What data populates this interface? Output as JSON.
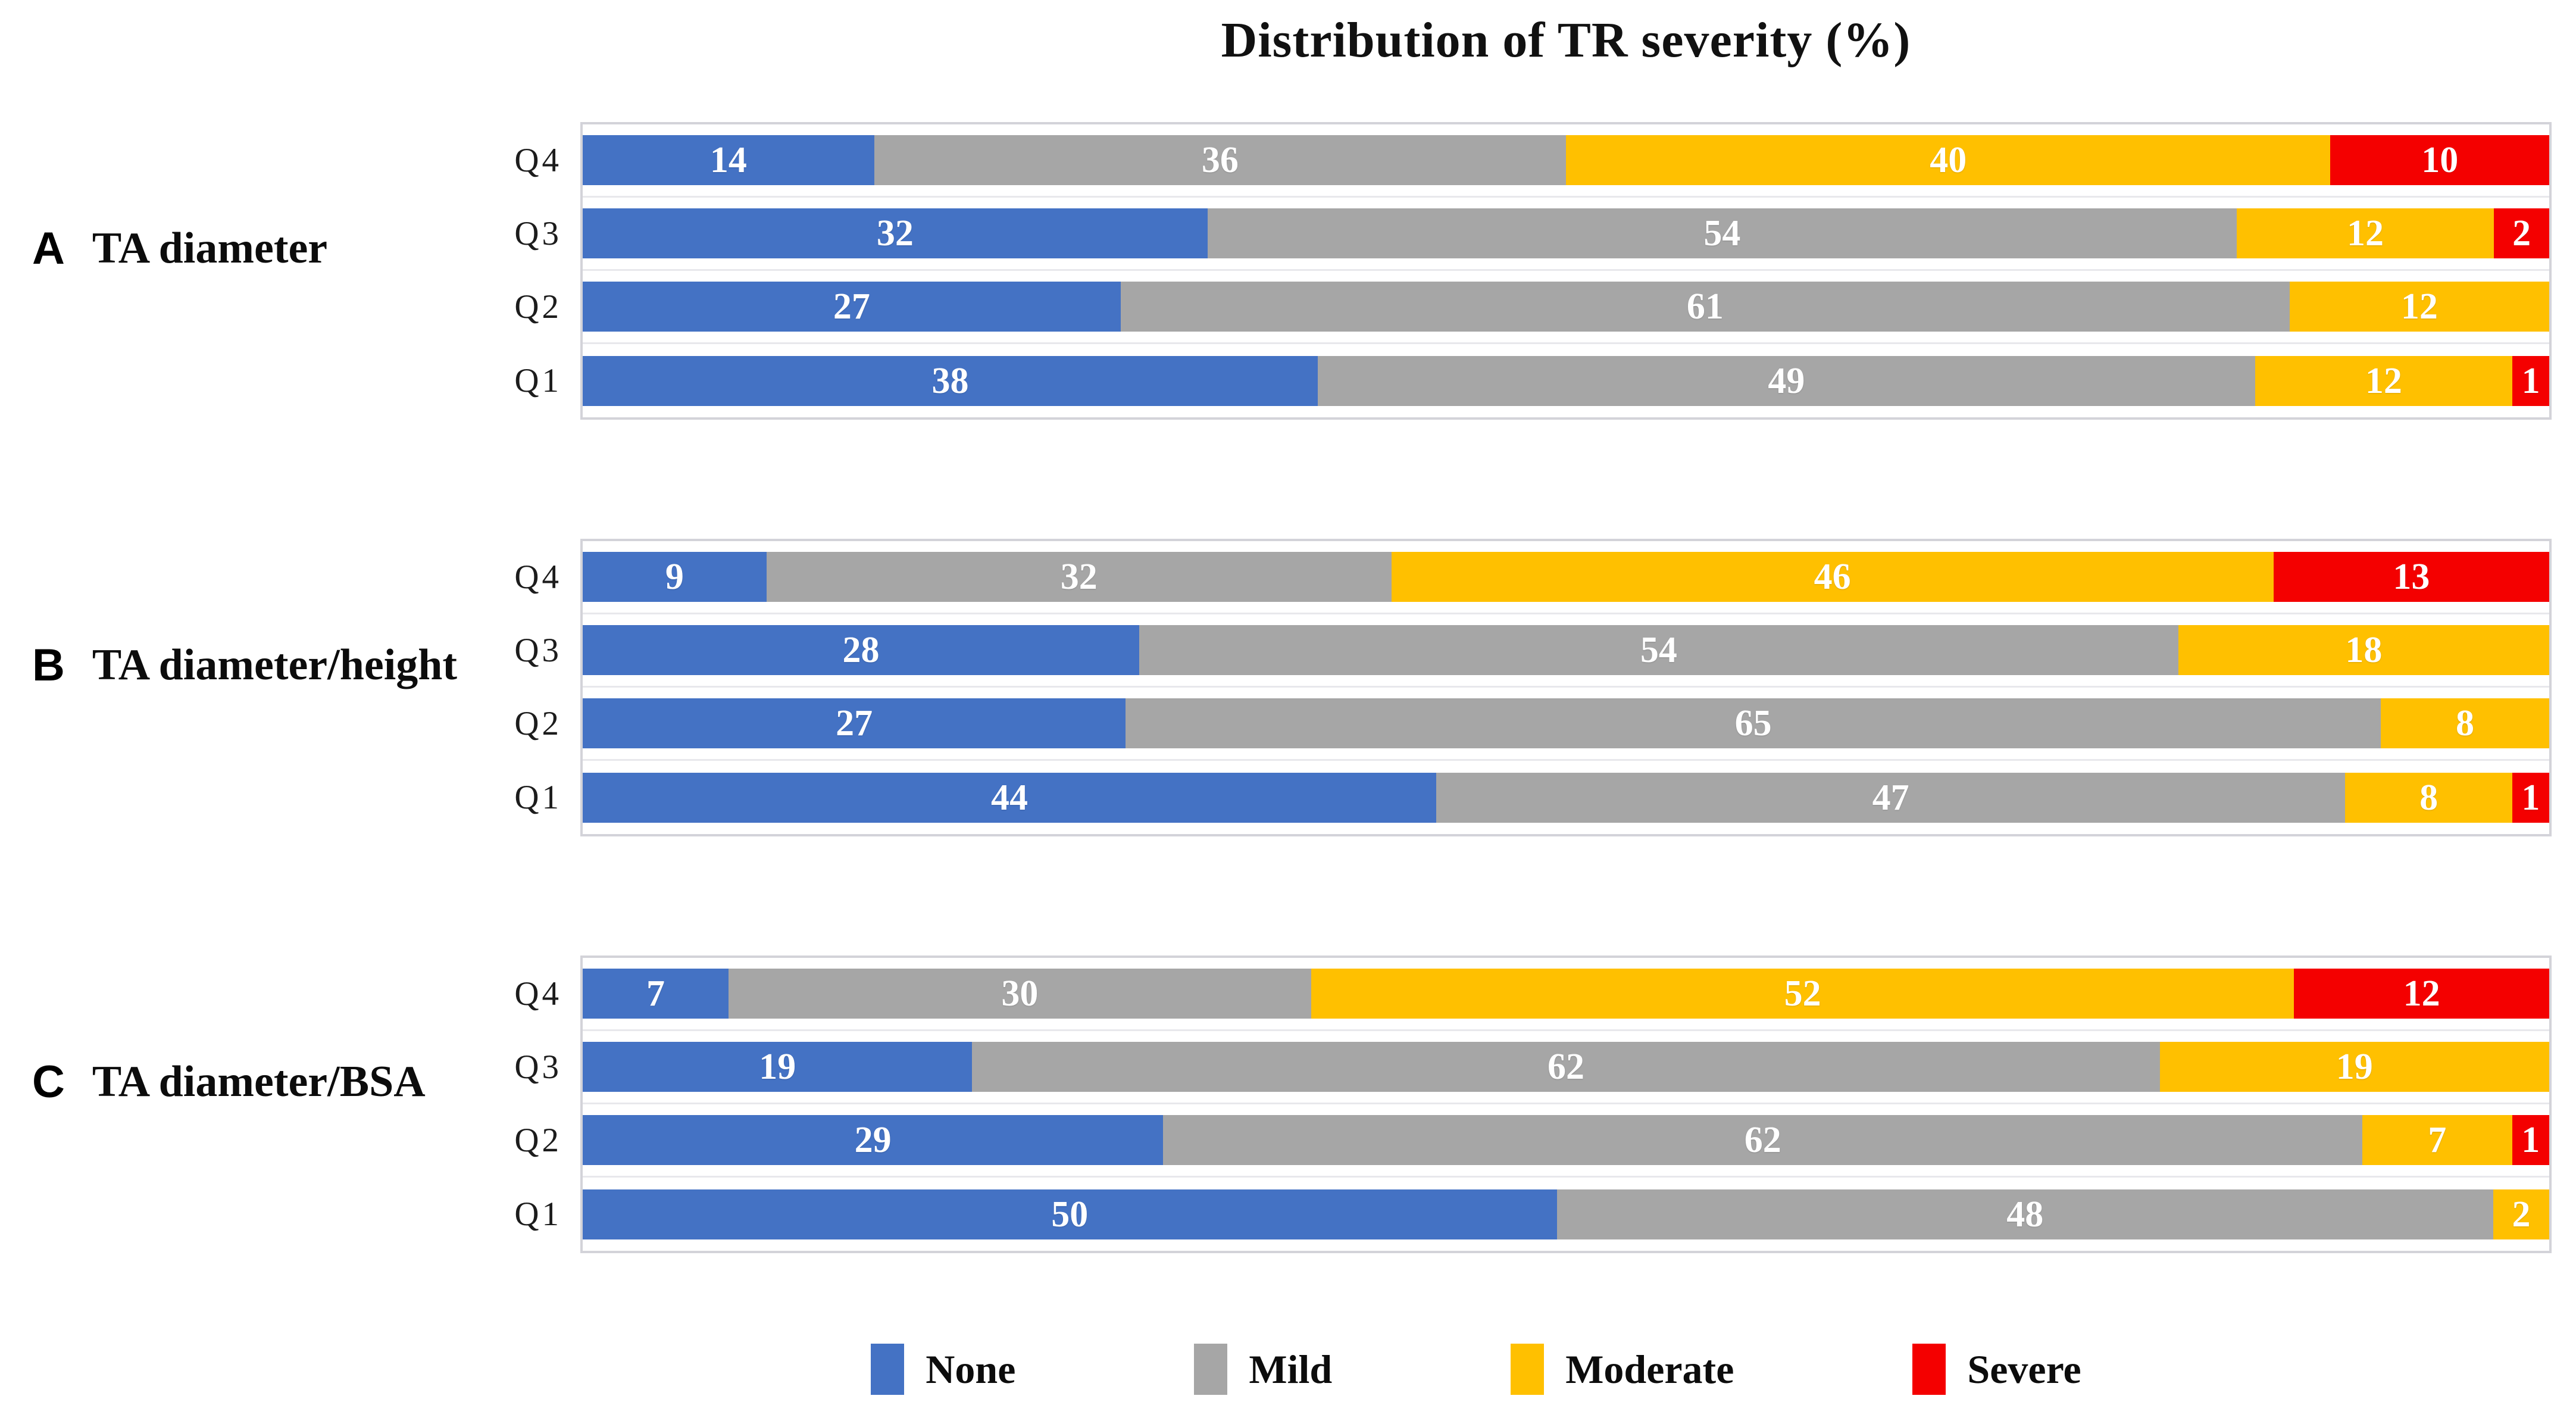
{
  "chart_data": {
    "type": "bar",
    "variant": "stacked-horizontal-100pct",
    "title": "Distribution of TR severity (%)",
    "legend_position": "bottom",
    "grid": false,
    "axis_range": [
      0,
      100
    ],
    "severities": [
      {
        "label": "None",
        "color": "#4472C4"
      },
      {
        "label": "Mild",
        "color": "#A6A6A6"
      },
      {
        "label": "Moderate",
        "color": "#FFC000"
      },
      {
        "label": "Severe",
        "color": "#F40000"
      }
    ],
    "panels": [
      {
        "letter": "A",
        "label": "TA diameter",
        "categories": [
          "Q4",
          "Q3",
          "Q2",
          "Q1"
        ],
        "rows": [
          {
            "label": "Q4",
            "values": [
              14,
              36,
              40,
              10
            ]
          },
          {
            "label": "Q3",
            "values": [
              32,
              54,
              12,
              2
            ]
          },
          {
            "label": "Q2",
            "values": [
              27,
              61,
              12,
              0
            ]
          },
          {
            "label": "Q1",
            "values": [
              38,
              49,
              12,
              1
            ]
          }
        ]
      },
      {
        "letter": "B",
        "label": "TA diameter/height",
        "categories": [
          "Q4",
          "Q3",
          "Q2",
          "Q1"
        ],
        "rows": [
          {
            "label": "Q4",
            "values": [
              9,
              32,
              46,
              13
            ]
          },
          {
            "label": "Q3",
            "values": [
              28,
              54,
              18,
              0
            ]
          },
          {
            "label": "Q2",
            "values": [
              27,
              65,
              8,
              0
            ]
          },
          {
            "label": "Q1",
            "values": [
              44,
              47,
              8,
              1
            ]
          }
        ]
      },
      {
        "letter": "C",
        "label": "TA diameter/BSA",
        "categories": [
          "Q4",
          "Q3",
          "Q2",
          "Q1"
        ],
        "rows": [
          {
            "label": "Q4",
            "values": [
              7,
              30,
              52,
              12
            ]
          },
          {
            "label": "Q3",
            "values": [
              19,
              62,
              19,
              0
            ]
          },
          {
            "label": "Q2",
            "values": [
              29,
              62,
              7,
              1
            ]
          },
          {
            "label": "Q1",
            "values": [
              50,
              48,
              2,
              0
            ]
          }
        ]
      }
    ]
  }
}
